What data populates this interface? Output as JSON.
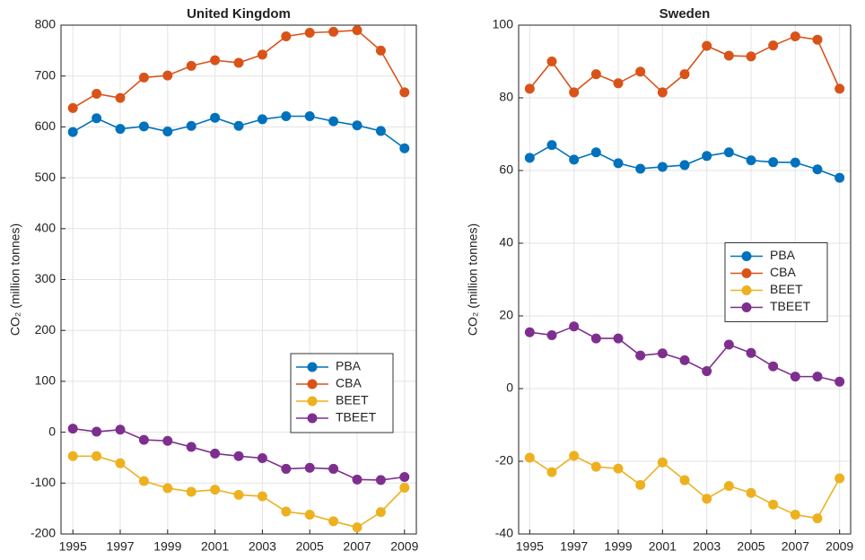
{
  "chart_data": [
    {
      "type": "line",
      "title": "United Kingdom",
      "ylabel": "CO₂ (million tonnes)",
      "x": [
        1995,
        1996,
        1997,
        1998,
        1999,
        2000,
        2001,
        2002,
        2003,
        2004,
        2005,
        2006,
        2007,
        2008,
        2009
      ],
      "xlim": [
        1994.5,
        2009.5
      ],
      "xticks": [
        1995,
        1997,
        1999,
        2001,
        2003,
        2005,
        2007,
        2009
      ],
      "ylim": [
        -200,
        800
      ],
      "yticks": [
        -200,
        -100,
        0,
        100,
        200,
        300,
        400,
        500,
        600,
        700,
        800
      ],
      "grid": true,
      "legend": "lower right",
      "series": [
        {
          "name": "PBA",
          "color": "#0072BD",
          "values": [
            590,
            617,
            596,
            601,
            591,
            602,
            618,
            602,
            615,
            621,
            621,
            611,
            603,
            592,
            558
          ]
        },
        {
          "name": "CBA",
          "color": "#D95319",
          "values": [
            637,
            665,
            657,
            697,
            701,
            720,
            731,
            726,
            742,
            778,
            785,
            787,
            790,
            750,
            668
          ]
        },
        {
          "name": "BEET",
          "color": "#EDB120",
          "values": [
            -47,
            -47,
            -61,
            -96,
            -110,
            -117,
            -113,
            -123,
            -126,
            -156,
            -162,
            -175,
            -187,
            -157,
            -109
          ]
        },
        {
          "name": "TBEET",
          "color": "#7E2F8E",
          "values": [
            7,
            1,
            5,
            -15,
            -17,
            -29,
            -42,
            -47,
            -51,
            -72,
            -70,
            -72,
            -93,
            -94,
            -88
          ]
        }
      ]
    },
    {
      "type": "line",
      "title": "Sweden",
      "ylabel": "CO₂ (million tonnes)",
      "x": [
        1995,
        1996,
        1997,
        1998,
        1999,
        2000,
        2001,
        2002,
        2003,
        2004,
        2005,
        2006,
        2007,
        2008,
        2009
      ],
      "xlim": [
        1994.5,
        2009.5
      ],
      "xticks": [
        1995,
        1997,
        1999,
        2001,
        2003,
        2005,
        2007,
        2009
      ],
      "ylim": [
        -40,
        100
      ],
      "yticks": [
        -40,
        -20,
        0,
        20,
        40,
        60,
        80,
        100
      ],
      "grid": true,
      "legend": "center right",
      "series": [
        {
          "name": "PBA",
          "color": "#0072BD",
          "values": [
            63.5,
            67,
            63,
            65,
            62,
            60.5,
            61,
            61.5,
            64,
            65,
            62.8,
            62.3,
            62.2,
            60.3,
            58
          ]
        },
        {
          "name": "CBA",
          "color": "#D95319",
          "values": [
            82.5,
            90,
            81.5,
            86.5,
            84,
            87.2,
            81.5,
            86.5,
            94.3,
            91.6,
            91.4,
            94.4,
            96.9,
            96,
            82.5
          ]
        },
        {
          "name": "BEET",
          "color": "#EDB120",
          "values": [
            -19,
            -23,
            -18.5,
            -21.5,
            -22,
            -26.5,
            -20.3,
            -25.2,
            -30.3,
            -26.8,
            -28.7,
            -31.9,
            -34.7,
            -35.7,
            -24.7
          ]
        },
        {
          "name": "TBEET",
          "color": "#7E2F8E",
          "values": [
            15.5,
            14.7,
            17.1,
            13.8,
            13.8,
            9.1,
            9.7,
            7.8,
            4.8,
            12.1,
            9.8,
            6.1,
            3.3,
            3.3,
            1.9
          ]
        }
      ]
    }
  ]
}
